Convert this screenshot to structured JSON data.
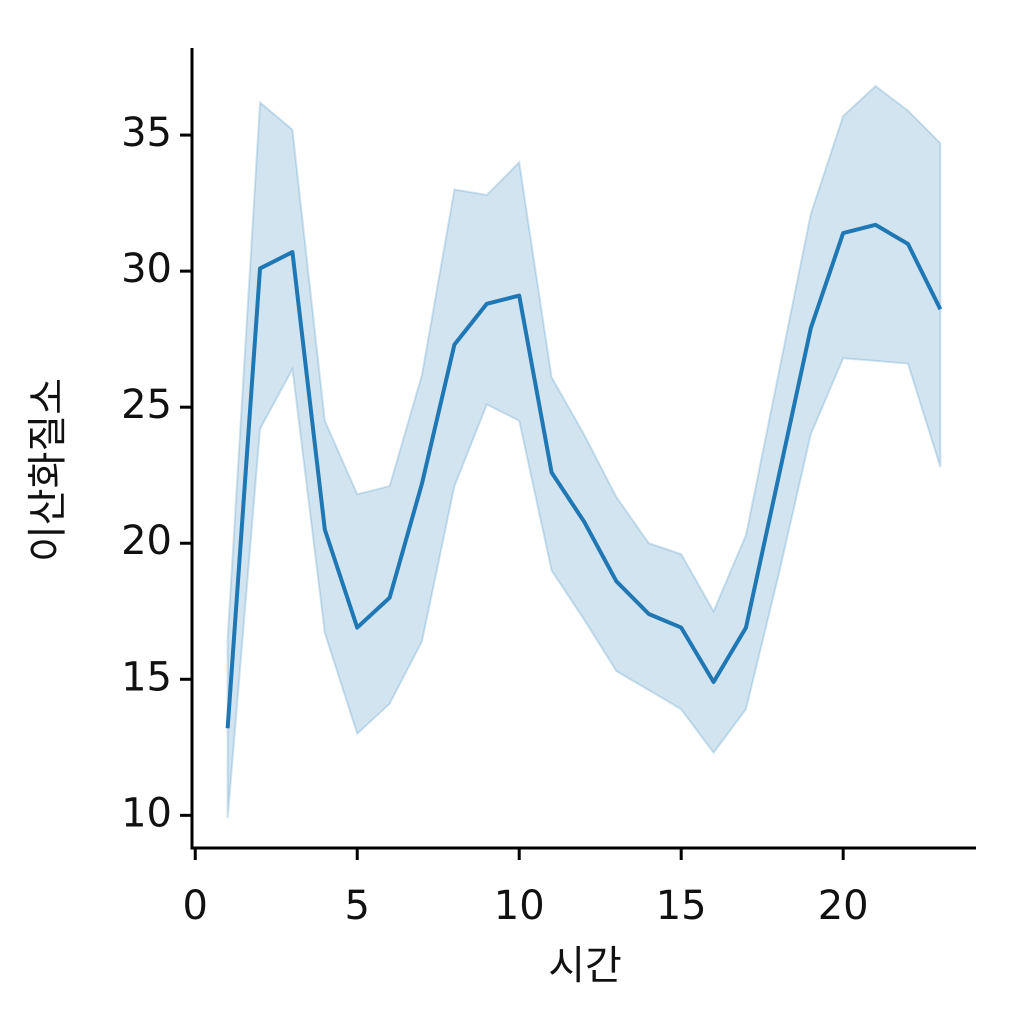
{
  "chart_data": {
    "type": "line",
    "x_label": "시간",
    "y_label": "이산화질소",
    "x": [
      1,
      2,
      3,
      4,
      5,
      6,
      7,
      8,
      9,
      10,
      11,
      12,
      13,
      14,
      15,
      16,
      17,
      18,
      19,
      20,
      21,
      22,
      23
    ],
    "values": [
      13.2,
      30.1,
      30.7,
      20.5,
      16.9,
      18.0,
      22.2,
      27.3,
      28.8,
      29.1,
      22.6,
      20.8,
      18.6,
      17.4,
      16.9,
      14.9,
      16.9,
      22.4,
      27.9,
      31.4,
      31.7,
      31.0,
      28.6
    ],
    "upper": [
      16.5,
      36.2,
      35.2,
      24.5,
      21.8,
      22.1,
      26.2,
      33.0,
      32.8,
      34.0,
      26.1,
      24.0,
      21.7,
      20.0,
      19.6,
      17.5,
      20.3,
      26.2,
      32.1,
      35.7,
      36.8,
      35.9,
      34.7
    ],
    "lower": [
      9.9,
      24.2,
      26.4,
      16.7,
      13.0,
      14.1,
      16.4,
      22.1,
      25.1,
      24.5,
      19.0,
      17.2,
      15.3,
      14.6,
      13.9,
      12.3,
      13.9,
      18.8,
      24.0,
      26.8,
      26.7,
      26.6,
      22.8
    ],
    "color": "#1f77b4",
    "xlim": [
      -0.1,
      24.1
    ],
    "xticks": [
      0,
      5,
      10,
      15,
      20
    ],
    "ylim": [
      8.8,
      38.2
    ],
    "yticks": [
      10,
      15,
      20,
      25,
      30,
      35
    ]
  }
}
